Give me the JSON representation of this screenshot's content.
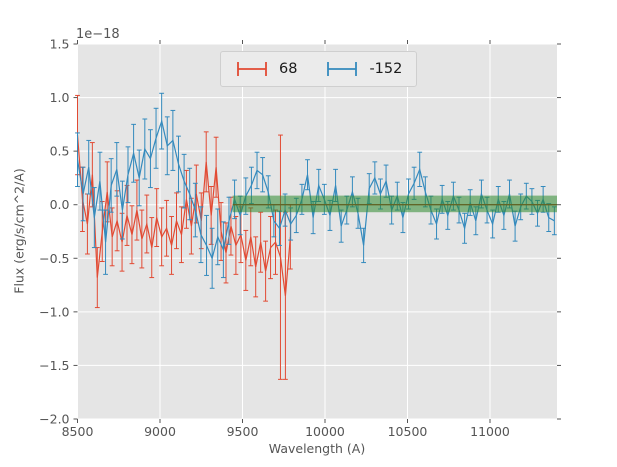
{
  "figure": {
    "bg_color": "#ffffff",
    "axes_bg_color": "#e5e5e5",
    "grid_color": "#ffffff",
    "tick_color": "#555555",
    "text_color": "#555555",
    "offset_text": "1e−18",
    "xlabel": "Wavelength (A)",
    "ylabel": "Flux (erg/s/cm^2/A)"
  },
  "legend": {
    "items": [
      {
        "label": "68",
        "color": "#e24a33",
        "glyph": "errorbar-icon"
      },
      {
        "label": "-152",
        "color": "#348abd",
        "glyph": "errorbar-icon"
      }
    ]
  },
  "chart_data": {
    "type": "line",
    "title": "",
    "xlabel": "Wavelength (A)",
    "ylabel": "Flux (erg/s/cm^2/A)",
    "y_unit_offset": "1e−18",
    "xlim": [
      8500,
      11406
    ],
    "ylim": [
      -2.0,
      1.5
    ],
    "grid": true,
    "legend_position": "upper center",
    "xticks": {
      "values": [
        8500,
        9000,
        9500,
        10000,
        10500,
        11000
      ],
      "labels": [
        "8500",
        "9000",
        "9500",
        "10000",
        "10500",
        "11000"
      ]
    },
    "yticks": {
      "values": [
        1.5,
        1.0,
        0.5,
        0.0,
        -0.5,
        -1.0,
        -1.5,
        -2.0
      ],
      "labels": [
        "1.5",
        "1.0",
        "0.5",
        "0.0",
        "−0.5",
        "−1.0",
        "−1.5",
        "−2.0"
      ]
    },
    "series": [
      {
        "name": "68",
        "color": "#e24a33",
        "x": [
          8500,
          8530,
          8560,
          8590,
          8620,
          8650,
          8680,
          8710,
          8740,
          8770,
          8800,
          8830,
          8860,
          8890,
          8920,
          8950,
          8980,
          9010,
          9040,
          9070,
          9100,
          9130,
          9160,
          9190,
          9220,
          9250,
          9280,
          9310,
          9340,
          9370,
          9400,
          9430,
          9460,
          9490,
          9520,
          9550,
          9580,
          9610,
          9640,
          9670,
          9700,
          9730,
          9760,
          9790
        ],
        "y": [
          0.65,
          0.05,
          -0.18,
          0.28,
          -0.68,
          -0.25,
          0.12,
          -0.3,
          -0.15,
          -0.35,
          -0.1,
          -0.28,
          -0.05,
          -0.32,
          -0.18,
          -0.4,
          -0.12,
          -0.3,
          -0.22,
          -0.38,
          -0.15,
          -0.28,
          0.05,
          -0.2,
          0.1,
          -0.15,
          0.4,
          -0.1,
          0.35,
          -0.25,
          -0.45,
          -0.2,
          -0.38,
          -0.28,
          -0.52,
          -0.3,
          -0.58,
          -0.35,
          -0.62,
          -0.4,
          -0.35,
          -0.49,
          -0.85,
          -0.3
        ],
        "yerr": [
          0.37,
          0.3,
          0.28,
          0.3,
          0.28,
          0.28,
          0.28,
          0.27,
          0.28,
          0.27,
          0.28,
          0.27,
          0.28,
          0.27,
          0.27,
          0.28,
          0.27,
          0.27,
          0.26,
          0.27,
          0.26,
          0.26,
          0.27,
          0.26,
          0.27,
          0.26,
          0.28,
          0.27,
          0.28,
          0.27,
          0.28,
          0.27,
          0.27,
          0.26,
          0.28,
          0.27,
          0.28,
          0.28,
          0.28,
          0.29,
          0.3,
          1.14,
          0.78,
          0.3
        ]
      },
      {
        "name": "-152",
        "color": "#348abd",
        "x": [
          8500,
          8534,
          8568,
          8602,
          8636,
          8670,
          8704,
          8738,
          8772,
          8806,
          8840,
          8874,
          8908,
          8942,
          8976,
          9010,
          9044,
          9078,
          9112,
          9146,
          9180,
          9214,
          9248,
          9282,
          9316,
          9350,
          9384,
          9418,
          9452,
          9486,
          9520,
          9554,
          9588,
          9622,
          9656,
          9690,
          9724,
          9758,
          9792,
          9826,
          9860,
          9894,
          9928,
          9962,
          9996,
          10030,
          10064,
          10098,
          10132,
          10166,
          10200,
          10234,
          10268,
          10302,
          10336,
          10370,
          10404,
          10438,
          10472,
          10506,
          10540,
          10574,
          10608,
          10642,
          10676,
          10710,
          10744,
          10778,
          10812,
          10846,
          10880,
          10914,
          10948,
          10982,
          11016,
          11050,
          11084,
          11118,
          11152,
          11186,
          11220,
          11254,
          11288,
          11322,
          11356,
          11390
        ],
        "y": [
          0.42,
          0.1,
          0.35,
          -0.12,
          0.22,
          -0.35,
          0.18,
          0.33,
          -0.05,
          0.28,
          0.48,
          0.25,
          0.52,
          0.43,
          0.62,
          0.78,
          0.55,
          0.6,
          0.38,
          0.22,
          0.1,
          -0.05,
          -0.28,
          -0.38,
          -0.5,
          -0.3,
          -0.42,
          -0.15,
          0.05,
          -0.1,
          0.08,
          0.18,
          0.32,
          0.28,
          0.12,
          -0.15,
          -0.22,
          -0.05,
          -0.18,
          -0.1,
          0.05,
          0.28,
          -0.12,
          0.18,
          0.05,
          -0.1,
          0.18,
          -0.2,
          -0.05,
          0.12,
          -0.08,
          -0.38,
          0.15,
          0.25,
          0.1,
          0.22,
          -0.05,
          0.08,
          -0.12,
          0.1,
          0.2,
          0.33,
          0.12,
          -0.05,
          -0.18,
          0.05,
          -0.1,
          0.08,
          -0.05,
          -0.22,
          0.02,
          -0.15,
          0.1,
          -0.05,
          -0.18,
          0.05,
          -0.1,
          0.1,
          -0.2,
          -0.02,
          0.08,
          0.03,
          -0.08,
          0.05,
          -0.12,
          -0.15
        ],
        "yerr": [
          0.25,
          0.25,
          0.25,
          0.28,
          0.27,
          0.3,
          0.25,
          0.25,
          0.27,
          0.26,
          0.27,
          0.26,
          0.28,
          0.27,
          0.28,
          0.26,
          0.27,
          0.28,
          0.26,
          0.25,
          0.24,
          0.25,
          0.26,
          0.28,
          0.28,
          0.26,
          0.26,
          0.22,
          0.18,
          0.18,
          0.17,
          0.17,
          0.17,
          0.16,
          0.15,
          0.15,
          0.16,
          0.15,
          0.15,
          0.16,
          0.14,
          0.14,
          0.15,
          0.15,
          0.14,
          0.14,
          0.15,
          0.15,
          0.13,
          0.14,
          0.14,
          0.16,
          0.14,
          0.15,
          0.14,
          0.15,
          0.13,
          0.13,
          0.14,
          0.14,
          0.15,
          0.16,
          0.14,
          0.13,
          0.14,
          0.13,
          0.13,
          0.13,
          0.12,
          0.14,
          0.12,
          0.13,
          0.13,
          0.12,
          0.13,
          0.12,
          0.13,
          0.13,
          0.14,
          0.12,
          0.12,
          0.12,
          0.12,
          0.12,
          0.13,
          0.13
        ]
      }
    ],
    "annotations": {
      "highlight_band": {
        "x0": 9440,
        "x1": 11406,
        "y0": -0.07,
        "y1": 0.085,
        "color": "#2e8b2e",
        "alpha": 0.55
      },
      "zero_reference_line": {
        "x0": 9440,
        "x1": 11406,
        "y": 0.0,
        "color": "#a03b22"
      }
    }
  }
}
